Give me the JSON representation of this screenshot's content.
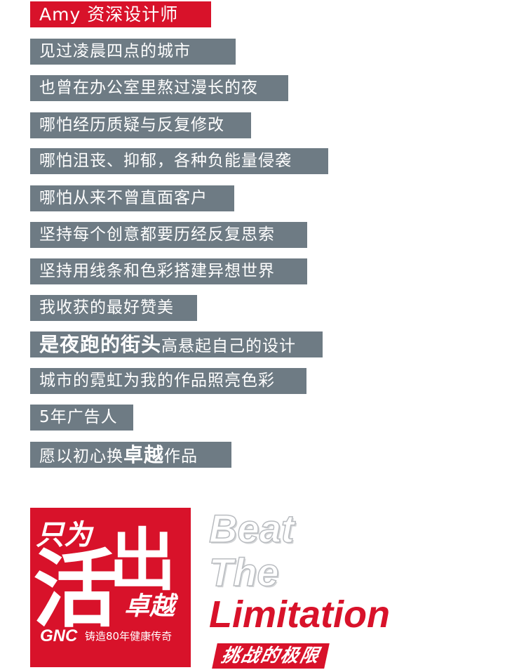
{
  "header": {
    "name_line": "Amy 资深设计师"
  },
  "lines": [
    "见过凌晨四点的城市",
    "也曾在办公室里熬过漫长的夜",
    "哪怕经历质疑与反复修改",
    "哪怕沮丧、抑郁，各种负能量侵袭",
    "哪怕从来不曾直面客户",
    "坚持每个创意都要历经反复思索",
    "坚持用线条和色彩搭建异想世界",
    "我收获的最好赞美"
  ],
  "emph_line": {
    "big": "是夜跑的街头",
    "rest": "高悬起自己的设计"
  },
  "lines2": [
    "城市的霓虹为我的作品照亮色彩",
    "5年广告人"
  ],
  "final_line": {
    "pre": "愿以初心换",
    "big": "卓越",
    "post": "作品"
  },
  "logo": {
    "top_chars": "只为",
    "huo": "活",
    "chu": "出",
    "zhuoyue": "卓越",
    "brand": "GNC",
    "tagline": "铸造80年健康传奇"
  },
  "slogan": {
    "word1": "Beat",
    "word2": "The",
    "word3": "Limitation",
    "cn": "挑战的极限"
  },
  "colors": {
    "brand_red": "#d8122a",
    "grey_bar": "#6e7b84",
    "outline_grey": "#b9bcc0"
  }
}
